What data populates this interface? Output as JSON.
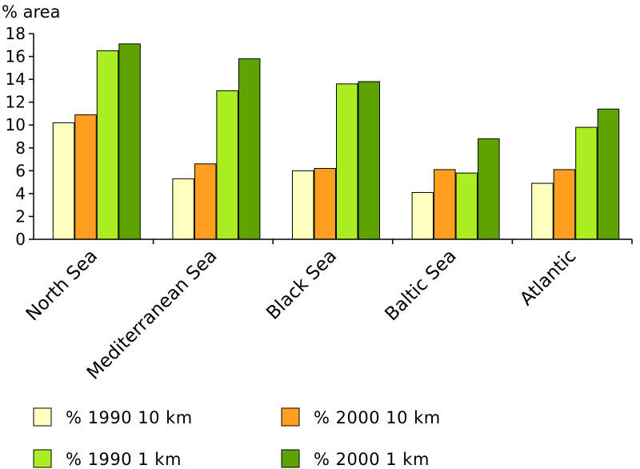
{
  "chart_data": {
    "type": "bar",
    "ylabel": "% area",
    "xlabel": "",
    "title": "",
    "ylim": [
      0,
      18
    ],
    "yticks": [
      0,
      2,
      4,
      6,
      8,
      10,
      12,
      14,
      16,
      18
    ],
    "grid": false,
    "legend_position": "bottom",
    "categories": [
      "North Sea",
      "Mediterranean Sea",
      "Black Sea",
      "Baltic Sea",
      "Atlantic"
    ],
    "series": [
      {
        "name": "% 1990 10 km",
        "color": "#ffffc0",
        "values": [
          10.2,
          5.3,
          6.0,
          4.1,
          4.9
        ]
      },
      {
        "name": "% 2000 10 km",
        "color": "#ff9f21",
        "values": [
          10.9,
          6.6,
          6.2,
          6.1,
          6.1
        ]
      },
      {
        "name": "% 1990 1 km",
        "color": "#aaee22",
        "values": [
          16.5,
          13.0,
          13.6,
          5.8,
          9.8
        ]
      },
      {
        "name": "% 2000 1 km",
        "color": "#5fa300",
        "values": [
          17.1,
          15.8,
          13.8,
          8.8,
          11.4
        ]
      }
    ]
  }
}
